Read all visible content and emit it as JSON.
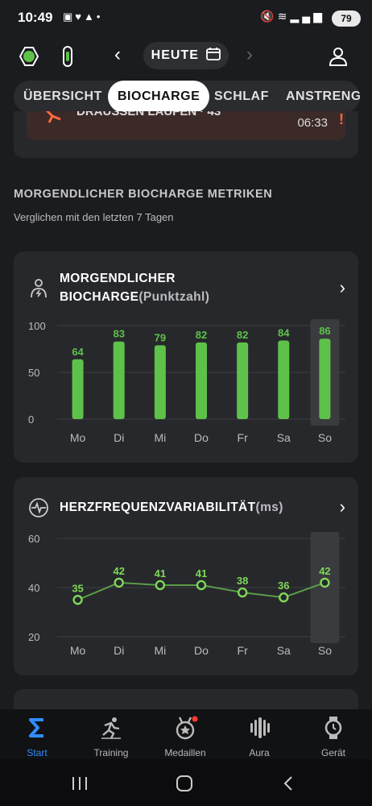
{
  "status": {
    "time": "10:49",
    "battery": "79"
  },
  "header": {
    "date_label": "HEUTE"
  },
  "tabs": [
    {
      "label": "ÜBERSICHT"
    },
    {
      "label": "BIOCHARGE"
    },
    {
      "label": "SCHLAF"
    },
    {
      "label": "ANSTRENG"
    }
  ],
  "top_card": {
    "title": "DRAUSSEN LAUFEN · 43",
    "time": "06:33",
    "alert": "!"
  },
  "section": {
    "title": "MORGENDLICHER BIOCHARGE METRIKEN",
    "subtitle": "Verglichen mit den letzten 7 Tagen"
  },
  "biocharge_card": {
    "title_line1": "MORGENDLICHER",
    "title_line2": "BIOCHARGE",
    "unit": "(Punktzahl)"
  },
  "hrv_card": {
    "title": "HERZFREQUENZVARIABILITÄT",
    "unit": "(ms)"
  },
  "chart_data": [
    {
      "type": "bar",
      "title": "MORGENDLICHER BIOCHARGE",
      "categories": [
        "Mo",
        "Di",
        "Mi",
        "Do",
        "Fr",
        "Sa",
        "So"
      ],
      "values": [
        64,
        83,
        79,
        82,
        82,
        84,
        86
      ],
      "yticks": [
        "0",
        "50",
        "100"
      ],
      "ylim": [
        0,
        100
      ],
      "highlight_index": 6,
      "grid": true,
      "color": "#5ec24a"
    },
    {
      "type": "line",
      "title": "HERZFREQUENZVARIABILITÄT",
      "categories": [
        "Mo",
        "Di",
        "Mi",
        "Do",
        "Fr",
        "Sa",
        "So"
      ],
      "values": [
        35,
        42,
        41,
        41,
        38,
        36,
        42
      ],
      "yticks": [
        "20",
        "40",
        "60"
      ],
      "ylim": [
        20,
        60
      ],
      "highlight_index": 6,
      "grid": true,
      "color": "#7ed957"
    }
  ],
  "bottom_nav": [
    {
      "label": "Start",
      "icon": "sigma-icon",
      "active": true
    },
    {
      "label": "Training",
      "icon": "runner-icon",
      "active": false
    },
    {
      "label": "Medaillen",
      "icon": "medal-icon",
      "active": false
    },
    {
      "label": "Aura",
      "icon": "aura-icon",
      "active": false
    },
    {
      "label": "Gerät",
      "icon": "watch-icon",
      "active": false
    }
  ],
  "colors": {
    "accent": "#2f8cff",
    "bar_green": "#5ec24a",
    "alert": "#ff6a3d"
  }
}
